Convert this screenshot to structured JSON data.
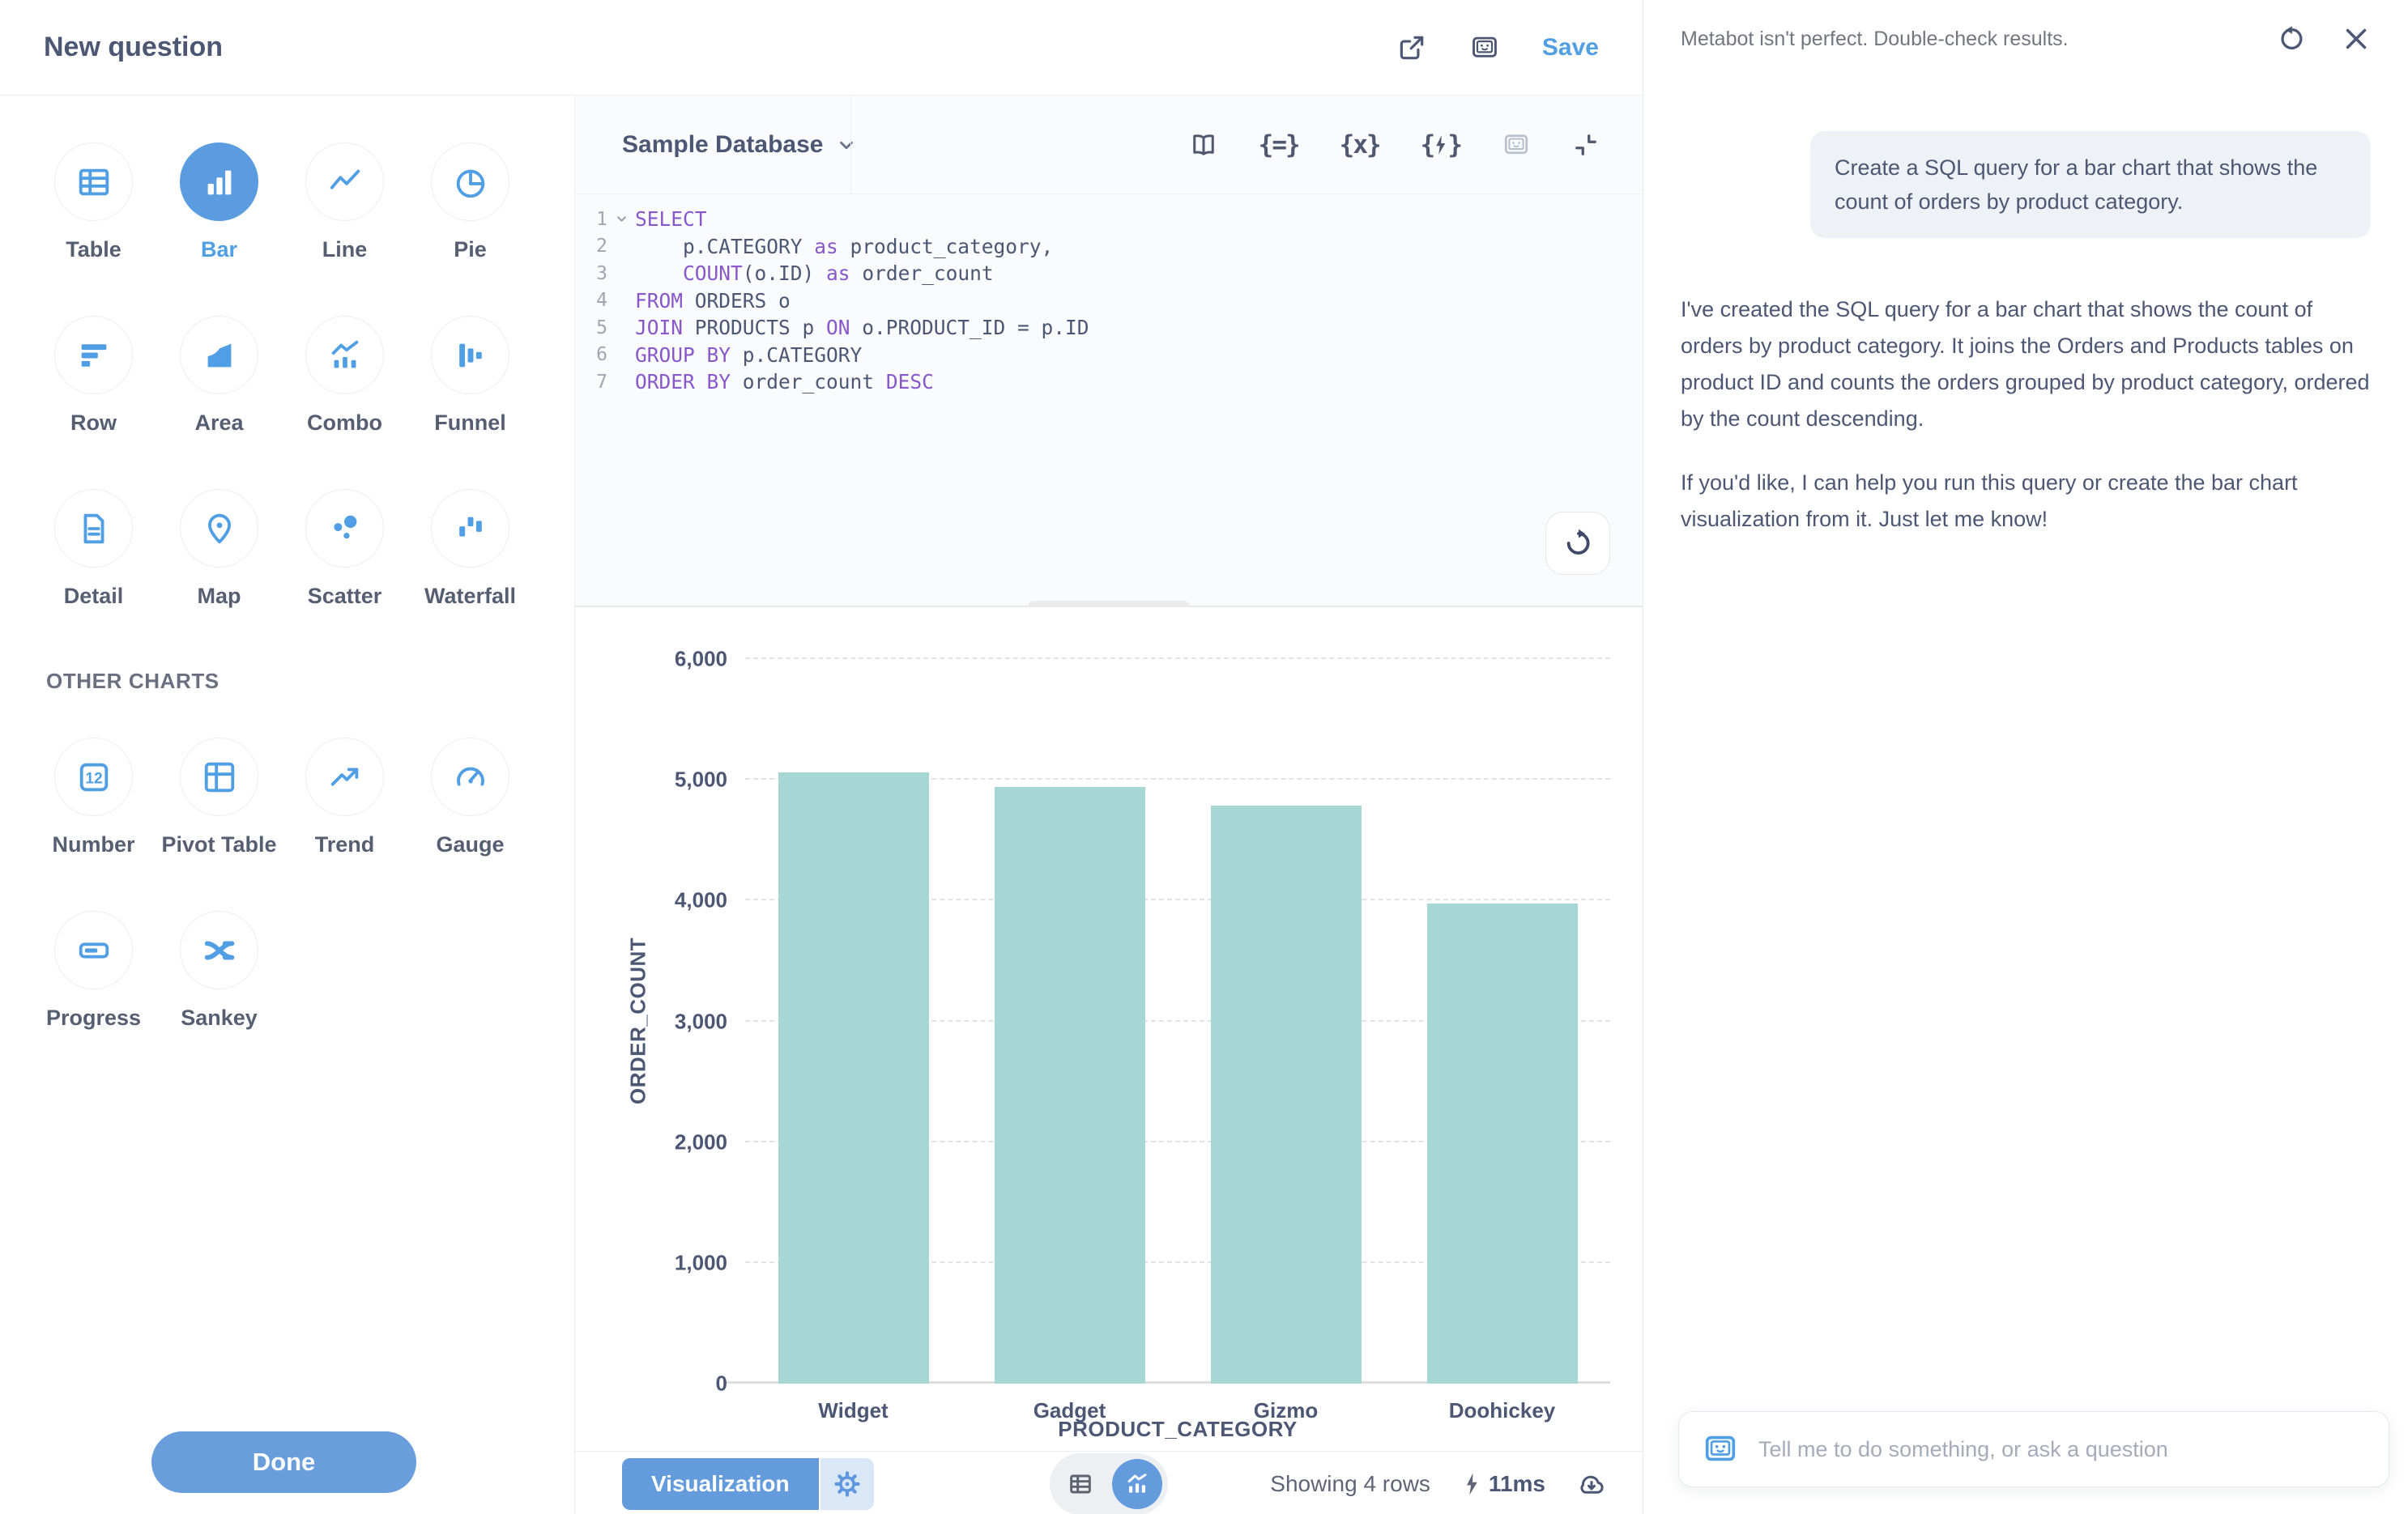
{
  "header": {
    "title": "New question",
    "save_label": "Save"
  },
  "sidebar": {
    "main_charts": [
      {
        "label": "Table",
        "icon": "table-icon",
        "selected": false
      },
      {
        "label": "Bar",
        "icon": "bar-icon",
        "selected": true
      },
      {
        "label": "Line",
        "icon": "line-icon",
        "selected": false
      },
      {
        "label": "Pie",
        "icon": "pie-icon",
        "selected": false
      },
      {
        "label": "Row",
        "icon": "row-icon",
        "selected": false
      },
      {
        "label": "Area",
        "icon": "area-icon",
        "selected": false
      },
      {
        "label": "Combo",
        "icon": "combo-icon",
        "selected": false
      },
      {
        "label": "Funnel",
        "icon": "funnel-icon",
        "selected": false
      },
      {
        "label": "Detail",
        "icon": "detail-icon",
        "selected": false
      },
      {
        "label": "Map",
        "icon": "map-pin-icon",
        "selected": false
      },
      {
        "label": "Scatter",
        "icon": "scatter-icon",
        "selected": false
      },
      {
        "label": "Waterfall",
        "icon": "waterfall-icon",
        "selected": false
      }
    ],
    "other_charts_label": "OTHER CHARTS",
    "other_charts": [
      {
        "label": "Number",
        "icon": "number-icon",
        "selected": false
      },
      {
        "label": "Pivot Table",
        "icon": "pivot-table-icon",
        "selected": false
      },
      {
        "label": "Trend",
        "icon": "trend-icon",
        "selected": false
      },
      {
        "label": "Gauge",
        "icon": "gauge-icon",
        "selected": false
      },
      {
        "label": "Progress",
        "icon": "progress-icon",
        "selected": false
      },
      {
        "label": "Sankey",
        "icon": "sankey-icon",
        "selected": false
      }
    ],
    "done_label": "Done"
  },
  "editor": {
    "database_label": "Sample Database",
    "sql_lines": [
      "SELECT",
      "    p.CATEGORY as product_category,",
      "    COUNT(o.ID) as order_count",
      "FROM ORDERS o",
      "JOIN PRODUCTS p ON o.PRODUCT_ID = p.ID",
      "GROUP BY p.CATEGORY",
      "ORDER BY order_count DESC"
    ],
    "keywords": [
      "SELECT",
      "FROM",
      "JOIN",
      "ON",
      "GROUP",
      "BY",
      "ORDER",
      "DESC",
      "COUNT",
      "AS"
    ]
  },
  "chart_data": {
    "type": "bar",
    "categories": [
      "Widget",
      "Gadget",
      "Gizmo",
      "Doohickey"
    ],
    "values": [
      5061,
      4939,
      4784,
      3976
    ],
    "title": "",
    "xlabel": "PRODUCT_CATEGORY",
    "ylabel": "ORDER_COUNT",
    "ylim": [
      0,
      6000
    ],
    "yticks": [
      0,
      1000,
      2000,
      3000,
      4000,
      5000,
      6000
    ],
    "grid": "horizontal-dashed",
    "legend": "none",
    "bar_color": "#a6d7d5"
  },
  "bottom_bar": {
    "visualization_label": "Visualization",
    "row_count_label": "Showing 4 rows",
    "timing_label": "11ms"
  },
  "metabot": {
    "disclaimer": "Metabot isn't perfect. Double-check results.",
    "user_message": "Create a SQL query for a bar chart that shows the count of orders by product category.",
    "assistant_paragraphs": [
      "I've created the SQL query for a bar chart that shows the count of orders by product category. It joins the Orders and Products tables on product ID and counts the orders grouped by product category, ordered by the count descending.",
      "If you'd like, I can help you run this query or create the bar chart visualization from it. Just let me know!"
    ],
    "input_placeholder": "Tell me to do something, or ask a question"
  },
  "colors": {
    "brand": "#509ee3",
    "button_blue": "#639bdd",
    "bar_fill": "#a6d7d5",
    "sql_keyword": "#8857c9",
    "text_primary": "#4c5773",
    "text_secondary": "#696e7b"
  }
}
